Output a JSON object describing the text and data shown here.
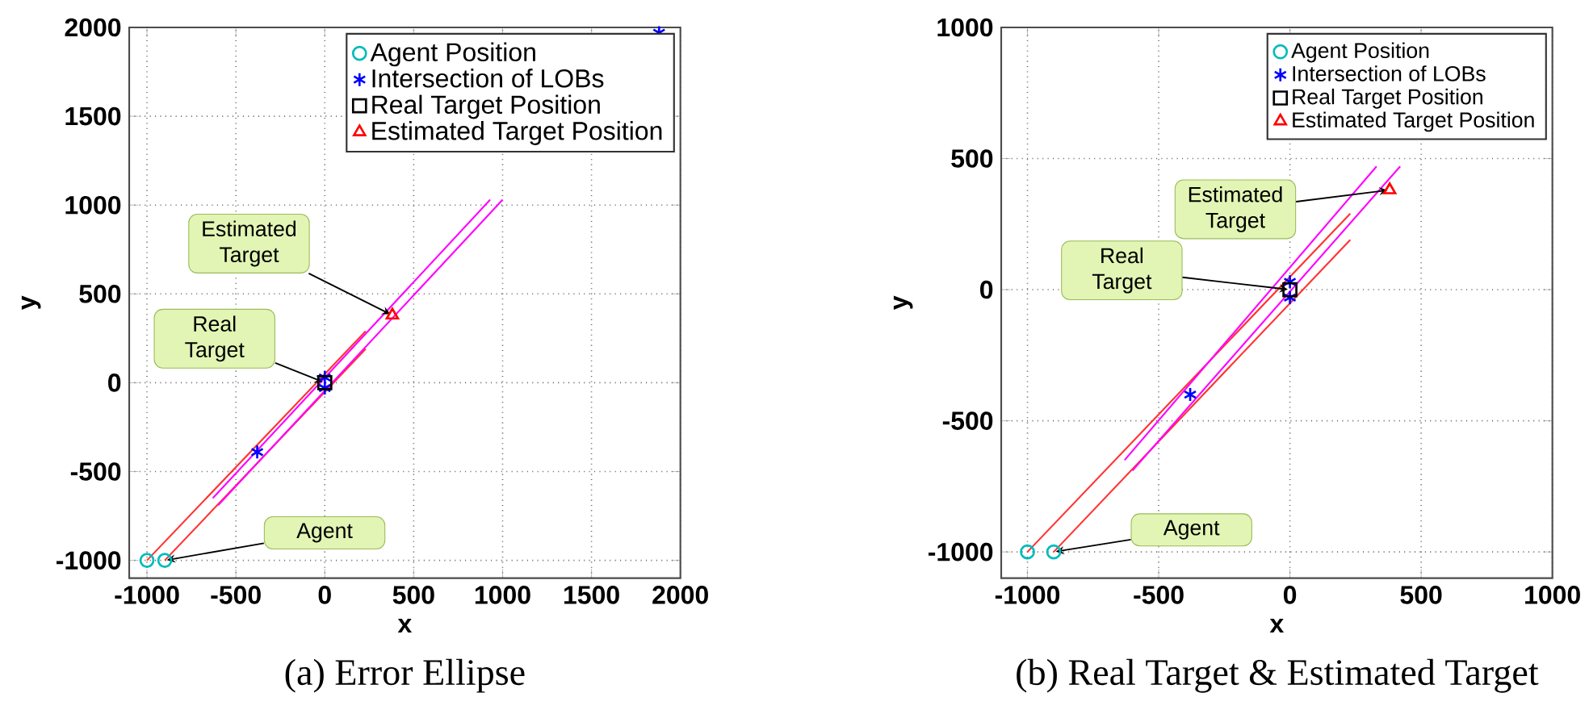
{
  "chart_data": [
    {
      "type": "scatter",
      "title": "(a) Error Ellipse",
      "xlabel": "x",
      "ylabel": "y",
      "xlim": [
        -1100,
        2000
      ],
      "ylim": [
        -1100,
        2000
      ],
      "xticks": [
        -1000,
        -500,
        0,
        500,
        1000,
        1500,
        2000
      ],
      "yticks": [
        -1000,
        -500,
        0,
        500,
        1000,
        1500,
        2000
      ],
      "grid": true,
      "legend": "top right",
      "series": [
        {
          "type": "line",
          "color": "#ff3333",
          "marker": "none",
          "x": [
            -1000,
            230
          ],
          "values": [
            -1000,
            290
          ]
        },
        {
          "type": "line",
          "color": "#ff3333",
          "marker": "none",
          "x": [
            -900,
            230
          ],
          "values": [
            -1000,
            190
          ]
        },
        {
          "type": "line",
          "color": "#ff00ff",
          "marker": "none",
          "x": [
            -630,
            930
          ],
          "values": [
            -650,
            1030
          ]
        },
        {
          "type": "line",
          "color": "#ff00ff",
          "marker": "none",
          "x": [
            -600,
            1000
          ],
          "values": [
            -690,
            1030
          ]
        },
        {
          "name": "Agent Position",
          "color": "#00bbbb",
          "marker": "circle",
          "x": [
            -1000,
            -900
          ],
          "values": [
            -1000,
            -1000
          ]
        },
        {
          "name": "Intersection of LOBs",
          "color": "#0000ff",
          "marker": "cross",
          "x": [
            1880,
            -380,
            0,
            0
          ],
          "values": [
            1970,
            -390,
            30,
            -30
          ]
        },
        {
          "name": "Real Target Position",
          "color": "#000000",
          "marker": "square",
          "x": [
            0
          ],
          "values": [
            0
          ]
        },
        {
          "name": "Estimated Target Position",
          "color": "#ff0000",
          "marker": "triangle",
          "x": [
            380
          ],
          "values": [
            380
          ]
        }
      ],
      "annotations": [
        {
          "text": "Estimated Target",
          "x": 380,
          "y": 380
        },
        "Real Target",
        "Agent"
      ]
    },
    {
      "type": "scatter",
      "title": "(b) Real Target & Estimated Target",
      "xlabel": "x",
      "ylabel": "y",
      "xlim": [
        -1100,
        1000
      ],
      "ylim": [
        -1100,
        1000
      ],
      "xticks": [
        -1000,
        -500,
        0,
        500,
        1000
      ],
      "yticks": [
        -1000,
        -500,
        0,
        500,
        1000
      ],
      "grid": true,
      "legend": "top right",
      "series": [
        {
          "type": "line",
          "color": "#ff3333",
          "marker": "none",
          "x": [
            -1000,
            230
          ],
          "values": [
            -1000,
            290
          ]
        },
        {
          "type": "line",
          "color": "#ff3333",
          "marker": "none",
          "x": [
            -900,
            230
          ],
          "values": [
            -1000,
            190
          ]
        },
        {
          "type": "line",
          "color": "#ff00ff",
          "marker": "none",
          "x": [
            -630,
            330
          ],
          "values": [
            -650,
            470
          ]
        },
        {
          "type": "line",
          "color": "#ff00ff",
          "marker": "none",
          "x": [
            -600,
            420
          ],
          "values": [
            -690,
            470
          ]
        },
        {
          "name": "Agent Position",
          "color": "#00bbbb",
          "marker": "circle",
          "x": [
            -1000,
            -900
          ],
          "values": [
            -1000,
            -1000
          ]
        },
        {
          "name": "Intersection of LOBs",
          "color": "#0000ff",
          "marker": "cross",
          "x": [
            -380,
            0,
            0
          ],
          "values": [
            -400,
            30,
            -30
          ]
        },
        {
          "name": "Real Target Position",
          "color": "#000000",
          "marker": "square",
          "x": [
            0
          ],
          "values": [
            0
          ]
        },
        {
          "name": "Estimated Target Position",
          "color": "#ff0000",
          "marker": "triangle",
          "x": [
            380
          ],
          "values": [
            380
          ]
        }
      ],
      "annotations": [
        {
          "text": "Estimated Target",
          "x": 380,
          "y": 380
        },
        "Real Target",
        "Agent"
      ]
    }
  ]
}
